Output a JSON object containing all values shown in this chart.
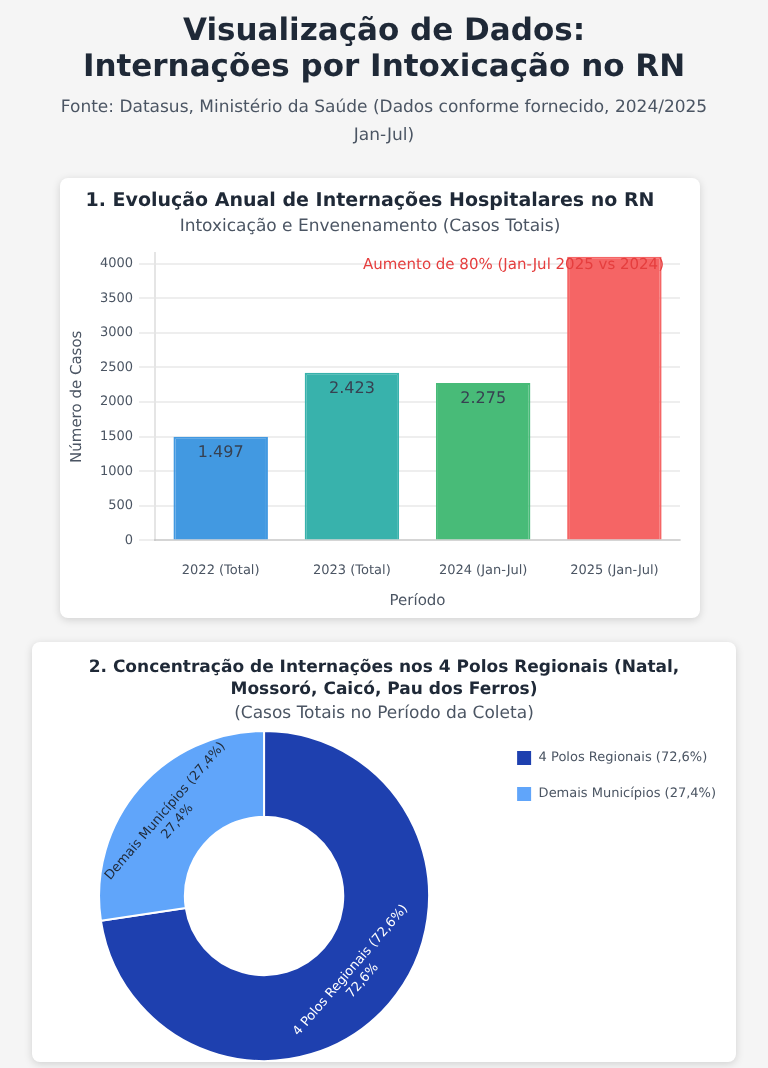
{
  "chart_data": [
    {
      "type": "bar",
      "title": "1. Evolução Anual de Internações Hospitalares no RN",
      "subtitle": "Intoxicação e Envenenamento (Casos Totais)",
      "xlabel": "Período",
      "ylabel": "Número de Casos",
      "categories": [
        "2022 (Total)",
        "2023 (Total)",
        "2024 (Jan-Jul)",
        "2025 (Jan-Jul)"
      ],
      "values": [
        1497,
        2423,
        2275,
        4100
      ],
      "colors": [
        "#4299e1",
        "#38b2ac",
        "#48bb78",
        "#f56565"
      ],
      "value_labels": [
        "1.497",
        "2.423",
        "2.275",
        null
      ],
      "ylim": [
        0,
        4150
      ],
      "yticks": [
        0,
        500,
        1000,
        1500,
        2000,
        2500,
        3000,
        3500,
        4000
      ],
      "grid": "y",
      "legend": false,
      "annotations": [
        "Visualização de Dados: Internações por Intoxicação no RN",
        "Fonte: Datasus, Ministério da Saúde (Dados conforme fornecido, 2024/2025 Jan-Jul)",
        "Aumento de 80% (Jan-Jul 2025 vs 2024)"
      ]
    },
    {
      "type": "donut",
      "title": "2. Concentração de Internações nos 4 Polos Regionais (Natal, Mossoró, Caicó, Pau dos Ferros)",
      "subtitle": "(Casos Totais no Período da Coleta)",
      "categories": [
        "4 Polos Regionais (72,6%)",
        "Demais Municípios (27,4%)"
      ],
      "values": [
        72.6,
        27.4
      ],
      "colors": [
        "#1e40af",
        "#60a5fa"
      ],
      "value_labels": [
        "72,6%",
        "27,4%"
      ],
      "legend": "top right"
    }
  ]
}
